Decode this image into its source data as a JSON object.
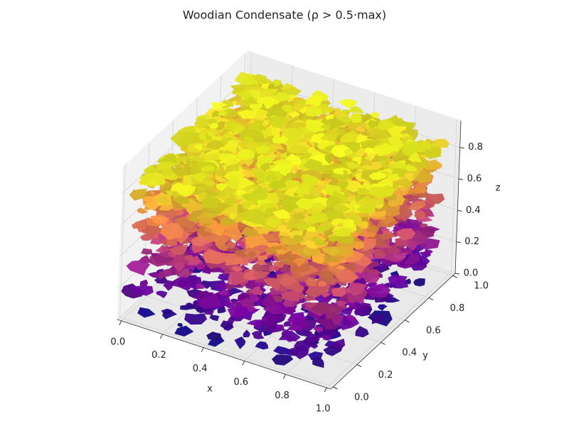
{
  "chart_data": {
    "type": "isosurface3d",
    "title": "Woodian Condensate (ρ > 0.5·max)",
    "xlabel": "x",
    "ylabel": "y",
    "zlabel": "z",
    "xlim": [
      -0.02,
      1.02
    ],
    "ylim": [
      -0.02,
      1.02
    ],
    "zlim": [
      0,
      0.97
    ],
    "xticks": [
      {
        "value": 0,
        "label": "0.0"
      },
      0.2,
      0.4,
      0.6,
      0.8,
      {
        "value": 1,
        "label": "1.0"
      }
    ],
    "yticks": [
      {
        "value": 0,
        "label": "0.0"
      },
      0.2,
      0.4,
      0.6,
      0.8,
      {
        "value": 1,
        "label": "1.0"
      }
    ],
    "zticks": [
      {
        "value": 0,
        "label": "0.0"
      },
      0.2,
      0.4,
      0.6,
      0.8
    ],
    "colormap": "plasma",
    "grid": true
  }
}
